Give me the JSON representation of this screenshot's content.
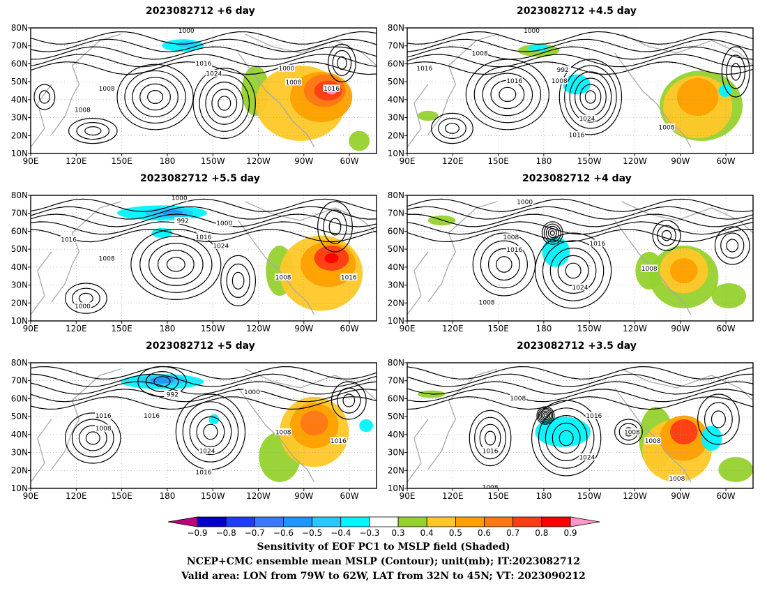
{
  "panels": [
    {
      "title": "2023082712 +6 day",
      "isobar_labels": [
        "1000",
        "1016",
        "1024",
        "1000",
        "1008",
        "1016",
        "1008",
        "1008"
      ]
    },
    {
      "title": "2023082712 +4.5 day",
      "isobar_labels": [
        "1000",
        "1008",
        "1016",
        "992",
        "1008",
        "1016",
        "1024",
        "1016",
        "1008"
      ]
    },
    {
      "title": "2023082712 +5.5 day",
      "isobar_labels": [
        "1000",
        "992",
        "1000",
        "1016",
        "1016",
        "1024",
        "1008",
        "1008",
        "1016",
        "1000"
      ]
    },
    {
      "title": "2023082712 +4 day",
      "isobar_labels": [
        "1000",
        "1008",
        "1016",
        "1016",
        "1008",
        "1024",
        "1008"
      ]
    },
    {
      "title": "2023082712 +5 day",
      "isobar_labels": [
        "992",
        "1000",
        "1016",
        "1016",
        "1008",
        "1008",
        "1016",
        "1024",
        "1016"
      ]
    },
    {
      "title": "2023082712 +3.5 day",
      "isobar_labels": [
        "1008",
        "1016",
        "1024",
        "1016",
        "1008",
        "1008",
        "1008",
        "1008"
      ]
    }
  ],
  "axes": {
    "lat_labels": [
      "80N",
      "70N",
      "60N",
      "50N",
      "40N",
      "30N",
      "20N",
      "10N"
    ],
    "lon_labels": [
      "90E",
      "120E",
      "150E",
      "180",
      "150W",
      "120W",
      "90W",
      "60W"
    ]
  },
  "colorbar": {
    "tick_labels": [
      "-0.9",
      "-0.8",
      "-0.7",
      "-0.6",
      "-0.5",
      "-0.4",
      "-0.3",
      "0.3",
      "0.4",
      "0.5",
      "0.6",
      "0.7",
      "0.8",
      "0.9"
    ],
    "colors": [
      "#c0007f",
      "#0000c8",
      "#1e3cff",
      "#3c78ff",
      "#1e96ff",
      "#28c8ff",
      "#00f5ff",
      "#ffffff",
      "#96d22d",
      "#ffc828",
      "#ffa000",
      "#ff7814",
      "#ff3c14",
      "#ff0000",
      "#ff96c8"
    ]
  },
  "caption": {
    "line1": "Sensitivity of EOF PC1 to MSLP field (Shaded)",
    "line2": "NCEP+CMC ensemble mean MSLP (Contour); unit(mb); IT:2023082712",
    "line3": "Valid area: LON from 79W to 62W, LAT from 32N to 45N; VT: 2023090212"
  }
}
